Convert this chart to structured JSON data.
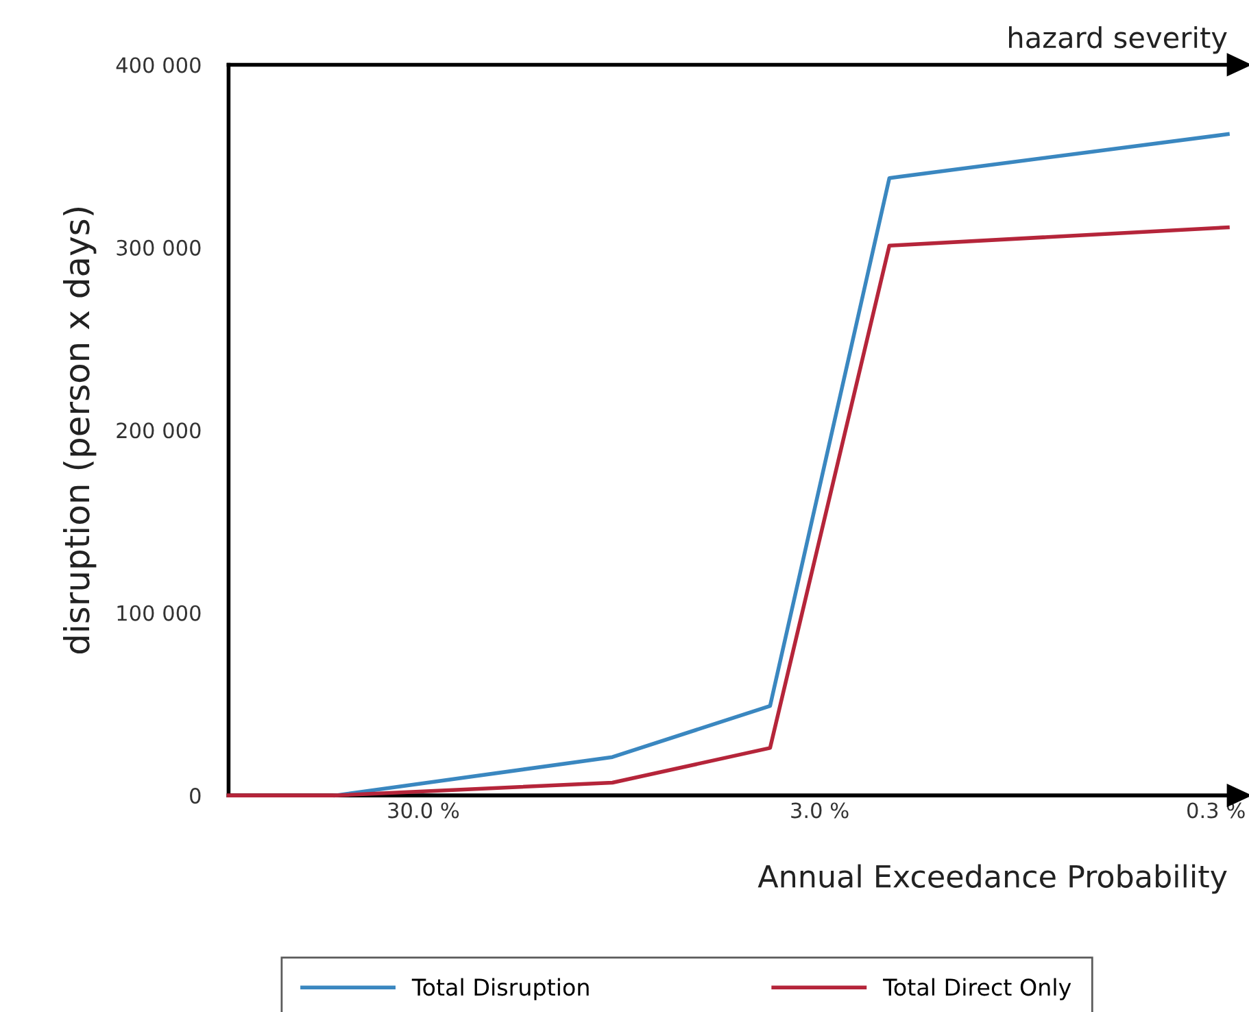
{
  "chart_data": {
    "type": "line",
    "xlabel": "Annual Exceedance Probability",
    "ylabel": "disruption (person x days)",
    "annotations": [
      "hazard severity"
    ],
    "x": [
      93,
      50,
      10,
      4,
      2,
      0.28
    ],
    "series": [
      {
        "name": "Total Disruption",
        "color": "#3a87c0",
        "values": [
          null,
          0,
          21000,
          49000,
          338000,
          362000
        ]
      },
      {
        "name": "Total Direct Only",
        "color": "#b5253a",
        "values": [
          0,
          0,
          7000,
          26000,
          301000,
          311000
        ]
      }
    ],
    "log": "x",
    "xlim": [
      93,
      0.28
    ],
    "xticks": [
      {
        "value": 30,
        "label": "30.0 %"
      },
      {
        "value": 3,
        "label": "3.0 %"
      },
      {
        "value": 0.3,
        "label": "0.3 %"
      }
    ],
    "ylim": [
      0,
      400000
    ],
    "yticks": [
      {
        "value": 0,
        "label": "0"
      },
      {
        "value": 100000,
        "label": "100 000"
      },
      {
        "value": 200000,
        "label": "200 000"
      },
      {
        "value": 300000,
        "label": "300 000"
      },
      {
        "value": 400000,
        "label": "400 000"
      }
    ],
    "grid": false,
    "legend": "bottom",
    "marker": "none",
    "line_style": "solid"
  }
}
